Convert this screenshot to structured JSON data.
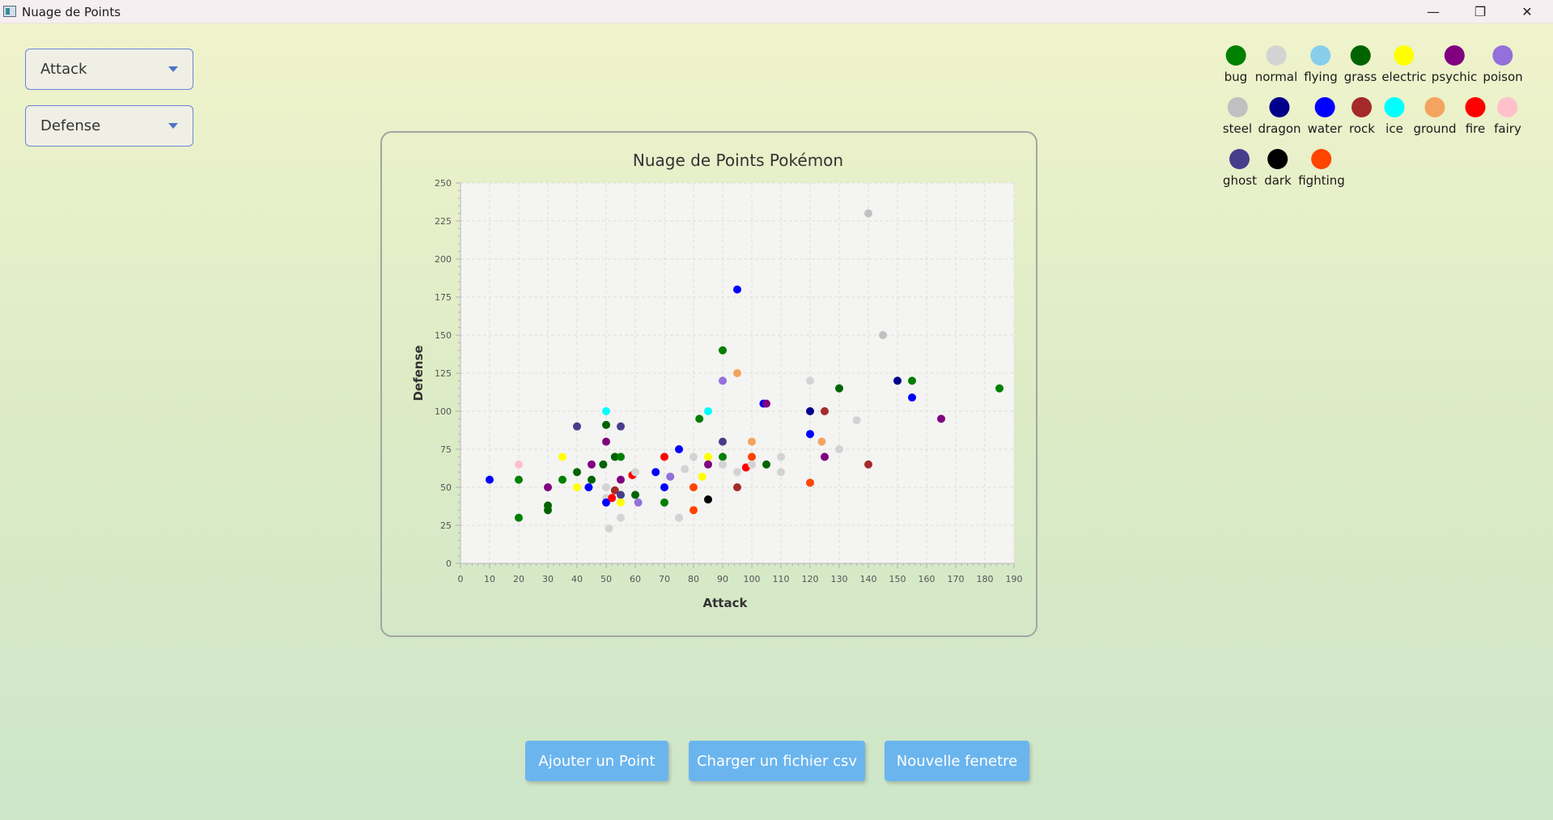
{
  "window": {
    "title": "Nuage de Points",
    "controls": {
      "minimize": "—",
      "maximize": "❐",
      "close": "✕"
    }
  },
  "selectors": {
    "x_axis": {
      "value": "Attack"
    },
    "y_axis": {
      "value": "Defense"
    }
  },
  "buttons": {
    "add_point": "Ajouter un Point",
    "load_csv": "Charger un fichier csv",
    "new_window": "Nouvelle fenetre"
  },
  "legend": [
    {
      "type": "bug",
      "color": "#008000"
    },
    {
      "type": "normal",
      "color": "#d3d3d3"
    },
    {
      "type": "flying",
      "color": "#87ceeb"
    },
    {
      "type": "grass",
      "color": "#006400"
    },
    {
      "type": "electric",
      "color": "#ffff00"
    },
    {
      "type": "psychic",
      "color": "#800080"
    },
    {
      "type": "poison",
      "color": "#9370db"
    },
    {
      "type": "steel",
      "color": "#c0c0c0"
    },
    {
      "type": "dragon",
      "color": "#00008b"
    },
    {
      "type": "water",
      "color": "#0000ff"
    },
    {
      "type": "rock",
      "color": "#a52a2a"
    },
    {
      "type": "ice",
      "color": "#00ffff"
    },
    {
      "type": "ground",
      "color": "#f4a460"
    },
    {
      "type": "fire",
      "color": "#ff0000"
    },
    {
      "type": "fairy",
      "color": "#ffc0cb"
    },
    {
      "type": "ghost",
      "color": "#483d8b"
    },
    {
      "type": "dark",
      "color": "#000000"
    },
    {
      "type": "fighting",
      "color": "#ff4500"
    }
  ],
  "chart_data": {
    "type": "scatter",
    "title": "Nuage de Points Pokémon",
    "xlabel": "Attack",
    "ylabel": "Defense",
    "xlim": [
      0,
      190
    ],
    "ylim": [
      0,
      250
    ],
    "xticks": [
      0,
      10,
      20,
      30,
      40,
      50,
      60,
      70,
      80,
      90,
      100,
      110,
      120,
      130,
      140,
      150,
      160,
      170,
      180,
      190
    ],
    "yticks": [
      0,
      25,
      50,
      75,
      100,
      125,
      150,
      175,
      200,
      225,
      250
    ],
    "grid": true,
    "points": [
      {
        "x": 10,
        "y": 55,
        "type": "water"
      },
      {
        "x": 20,
        "y": 65,
        "type": "fairy"
      },
      {
        "x": 20,
        "y": 55,
        "type": "bug"
      },
      {
        "x": 20,
        "y": 30,
        "type": "bug"
      },
      {
        "x": 30,
        "y": 50,
        "type": "psychic"
      },
      {
        "x": 30,
        "y": 38,
        "type": "grass"
      },
      {
        "x": 30,
        "y": 35,
        "type": "grass"
      },
      {
        "x": 35,
        "y": 70,
        "type": "electric"
      },
      {
        "x": 35,
        "y": 55,
        "type": "bug"
      },
      {
        "x": 40,
        "y": 90,
        "type": "ghost"
      },
      {
        "x": 40,
        "y": 60,
        "type": "grass"
      },
      {
        "x": 40,
        "y": 50,
        "type": "electric"
      },
      {
        "x": 44,
        "y": 50,
        "type": "water"
      },
      {
        "x": 45,
        "y": 65,
        "type": "psychic"
      },
      {
        "x": 45,
        "y": 55,
        "type": "grass"
      },
      {
        "x": 49,
        "y": 65,
        "type": "grass"
      },
      {
        "x": 50,
        "y": 100,
        "type": "ice"
      },
      {
        "x": 50,
        "y": 91,
        "type": "grass"
      },
      {
        "x": 50,
        "y": 80,
        "type": "psychic"
      },
      {
        "x": 50,
        "y": 50,
        "type": "normal"
      },
      {
        "x": 50,
        "y": 43,
        "type": "normal"
      },
      {
        "x": 50,
        "y": 40,
        "type": "water"
      },
      {
        "x": 51,
        "y": 23,
        "type": "normal"
      },
      {
        "x": 52,
        "y": 43,
        "type": "fire"
      },
      {
        "x": 53,
        "y": 48,
        "type": "rock"
      },
      {
        "x": 53,
        "y": 70,
        "type": "grass"
      },
      {
        "x": 55,
        "y": 70,
        "type": "bug"
      },
      {
        "x": 55,
        "y": 90,
        "type": "ghost"
      },
      {
        "x": 55,
        "y": 55,
        "type": "psychic"
      },
      {
        "x": 55,
        "y": 45,
        "type": "ghost"
      },
      {
        "x": 55,
        "y": 40,
        "type": "electric"
      },
      {
        "x": 55,
        "y": 30,
        "type": "normal"
      },
      {
        "x": 59,
        "y": 58,
        "type": "fire"
      },
      {
        "x": 60,
        "y": 60,
        "type": "normal"
      },
      {
        "x": 60,
        "y": 45,
        "type": "grass"
      },
      {
        "x": 61,
        "y": 40,
        "type": "poison"
      },
      {
        "x": 67,
        "y": 60,
        "type": "water"
      },
      {
        "x": 70,
        "y": 70,
        "type": "fire"
      },
      {
        "x": 70,
        "y": 50,
        "type": "water"
      },
      {
        "x": 70,
        "y": 40,
        "type": "bug"
      },
      {
        "x": 72,
        "y": 57,
        "type": "poison"
      },
      {
        "x": 75,
        "y": 75,
        "type": "water"
      },
      {
        "x": 75,
        "y": 30,
        "type": "normal"
      },
      {
        "x": 77,
        "y": 62,
        "type": "normal"
      },
      {
        "x": 80,
        "y": 70,
        "type": "normal"
      },
      {
        "x": 80,
        "y": 50,
        "type": "fighting"
      },
      {
        "x": 80,
        "y": 35,
        "type": "fighting"
      },
      {
        "x": 82,
        "y": 95,
        "type": "bug"
      },
      {
        "x": 83,
        "y": 57,
        "type": "electric"
      },
      {
        "x": 85,
        "y": 100,
        "type": "ice"
      },
      {
        "x": 85,
        "y": 70,
        "type": "electric"
      },
      {
        "x": 85,
        "y": 65,
        "type": "psychic"
      },
      {
        "x": 85,
        "y": 42,
        "type": "dark"
      },
      {
        "x": 90,
        "y": 140,
        "type": "bug"
      },
      {
        "x": 90,
        "y": 120,
        "type": "poison"
      },
      {
        "x": 90,
        "y": 80,
        "type": "ghost"
      },
      {
        "x": 90,
        "y": 70,
        "type": "bug"
      },
      {
        "x": 90,
        "y": 65,
        "type": "normal"
      },
      {
        "x": 95,
        "y": 180,
        "type": "water"
      },
      {
        "x": 95,
        "y": 125,
        "type": "ground"
      },
      {
        "x": 95,
        "y": 60,
        "type": "normal"
      },
      {
        "x": 95,
        "y": 50,
        "type": "rock"
      },
      {
        "x": 98,
        "y": 63,
        "type": "fire"
      },
      {
        "x": 100,
        "y": 80,
        "type": "ground"
      },
      {
        "x": 100,
        "y": 70,
        "type": "fighting"
      },
      {
        "x": 100,
        "y": 65,
        "type": "normal"
      },
      {
        "x": 104,
        "y": 105,
        "type": "water"
      },
      {
        "x": 105,
        "y": 105,
        "type": "psychic"
      },
      {
        "x": 105,
        "y": 65,
        "type": "grass"
      },
      {
        "x": 110,
        "y": 70,
        "type": "normal"
      },
      {
        "x": 110,
        "y": 60,
        "type": "normal"
      },
      {
        "x": 120,
        "y": 120,
        "type": "normal"
      },
      {
        "x": 120,
        "y": 100,
        "type": "dragon"
      },
      {
        "x": 120,
        "y": 85,
        "type": "water"
      },
      {
        "x": 120,
        "y": 53,
        "type": "fighting"
      },
      {
        "x": 124,
        "y": 80,
        "type": "ground"
      },
      {
        "x": 125,
        "y": 100,
        "type": "rock"
      },
      {
        "x": 125,
        "y": 70,
        "type": "psychic"
      },
      {
        "x": 130,
        "y": 115,
        "type": "grass"
      },
      {
        "x": 130,
        "y": 75,
        "type": "normal"
      },
      {
        "x": 136,
        "y": 94,
        "type": "normal"
      },
      {
        "x": 140,
        "y": 230,
        "type": "steel"
      },
      {
        "x": 140,
        "y": 65,
        "type": "rock"
      },
      {
        "x": 145,
        "y": 150,
        "type": "steel"
      },
      {
        "x": 150,
        "y": 120,
        "type": "dragon"
      },
      {
        "x": 155,
        "y": 120,
        "type": "bug"
      },
      {
        "x": 155,
        "y": 109,
        "type": "water"
      },
      {
        "x": 165,
        "y": 95,
        "type": "psychic"
      },
      {
        "x": 185,
        "y": 115,
        "type": "bug"
      }
    ]
  }
}
